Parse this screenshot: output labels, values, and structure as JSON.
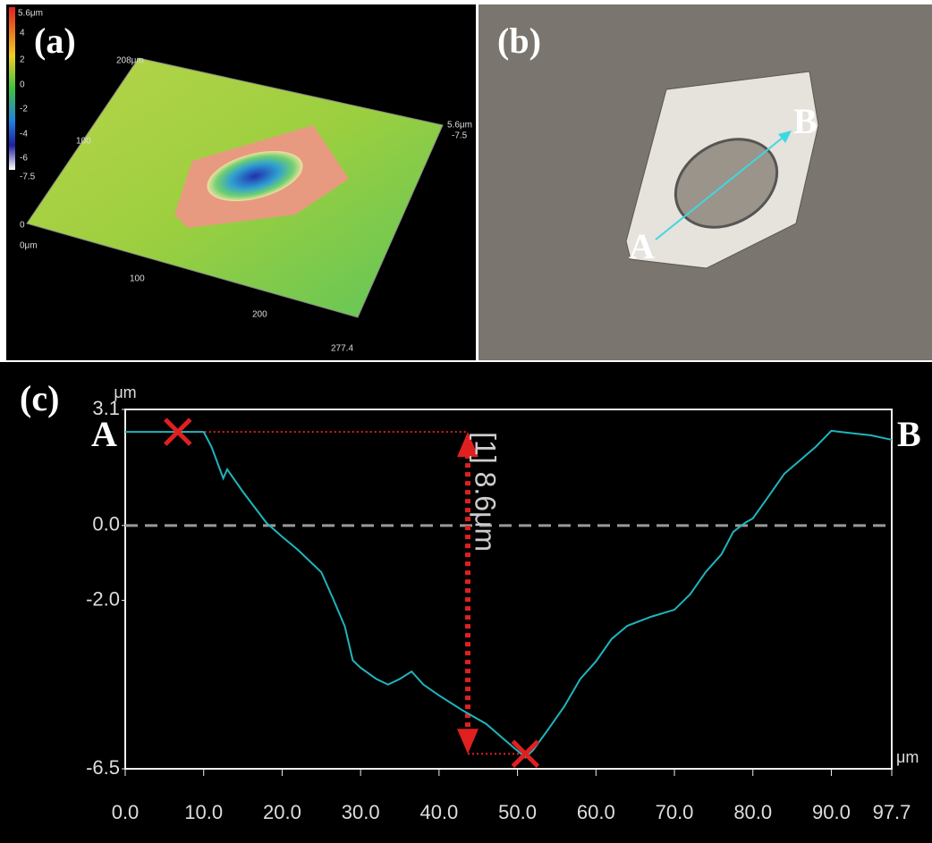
{
  "panel_a": {
    "label": "(a)",
    "colorbar": [
      "5.6μm",
      "4",
      "2",
      "0",
      "-2",
      "-4",
      "-6",
      "-7.5"
    ],
    "axis_labels": [
      "208μm",
      "100",
      "0",
      "0μm",
      "100",
      "200",
      "277.4",
      "5.6μm",
      "-7.5"
    ]
  },
  "panel_b": {
    "label": "(b)",
    "point_a": "A",
    "point_b": "B"
  },
  "chart_data": {
    "type": "line",
    "label": "(c)",
    "y_unit": "μm",
    "x_unit": "μm",
    "start_label": "A",
    "end_label": "B",
    "measurement": "[1] 8.6μm",
    "x": [
      0,
      5,
      10,
      10.5,
      11,
      12.5,
      13,
      15,
      18,
      20,
      22,
      25,
      26.5,
      28,
      29,
      30,
      32,
      33.5,
      35,
      36.5,
      38,
      40,
      43,
      46,
      48,
      50,
      51,
      52,
      54,
      56,
      58,
      60,
      62,
      64,
      67,
      70,
      72,
      74,
      76,
      77.5,
      79,
      80,
      82,
      84,
      86,
      88,
      90,
      92,
      95,
      97.7
    ],
    "series": [
      {
        "color": "#1fb5bd",
        "values": [
          2.5,
          2.5,
          2.5,
          2.3,
          2.1,
          1.26,
          1.5,
          0.9,
          0.07,
          -0.3,
          -0.65,
          -1.25,
          -1.96,
          -2.7,
          -3.6,
          -3.8,
          -4.1,
          -4.25,
          -4.1,
          -3.9,
          -4.25,
          -4.54,
          -4.94,
          -5.3,
          -5.66,
          -6.02,
          -6.2,
          -6.0,
          -5.42,
          -4.82,
          -4.1,
          -3.63,
          -3.03,
          -2.68,
          -2.44,
          -2.25,
          -1.84,
          -1.24,
          -0.77,
          -0.17,
          0.07,
          0.19,
          0.78,
          1.38,
          1.74,
          2.1,
          2.53,
          2.48,
          2.41,
          2.29
        ]
      }
    ],
    "markers": [
      {
        "x": 6.7,
        "y": 2.5
      },
      {
        "x": 51,
        "y": -6.1
      }
    ],
    "reference_line": 0,
    "xlim": [
      0,
      97.7
    ],
    "ylim": [
      -6.5,
      3.1
    ],
    "xticks": [
      {
        "value": 0,
        "label": "0.0"
      },
      {
        "value": 10,
        "label": "10.0"
      },
      {
        "value": 20,
        "label": "20.0"
      },
      {
        "value": 30,
        "label": "30.0"
      },
      {
        "value": 40,
        "label": "40.0"
      },
      {
        "value": 50,
        "label": "50.0"
      },
      {
        "value": 60,
        "label": "60.0"
      },
      {
        "value": 70,
        "label": "70.0"
      },
      {
        "value": 80,
        "label": "80.0"
      },
      {
        "value": 90,
        "label": "90.0"
      },
      97.7
    ],
    "yticks": [
      3.1,
      {
        "value": 0,
        "label": "0.0"
      },
      {
        "value": -2,
        "label": "-2.0"
      },
      -6.5
    ]
  }
}
